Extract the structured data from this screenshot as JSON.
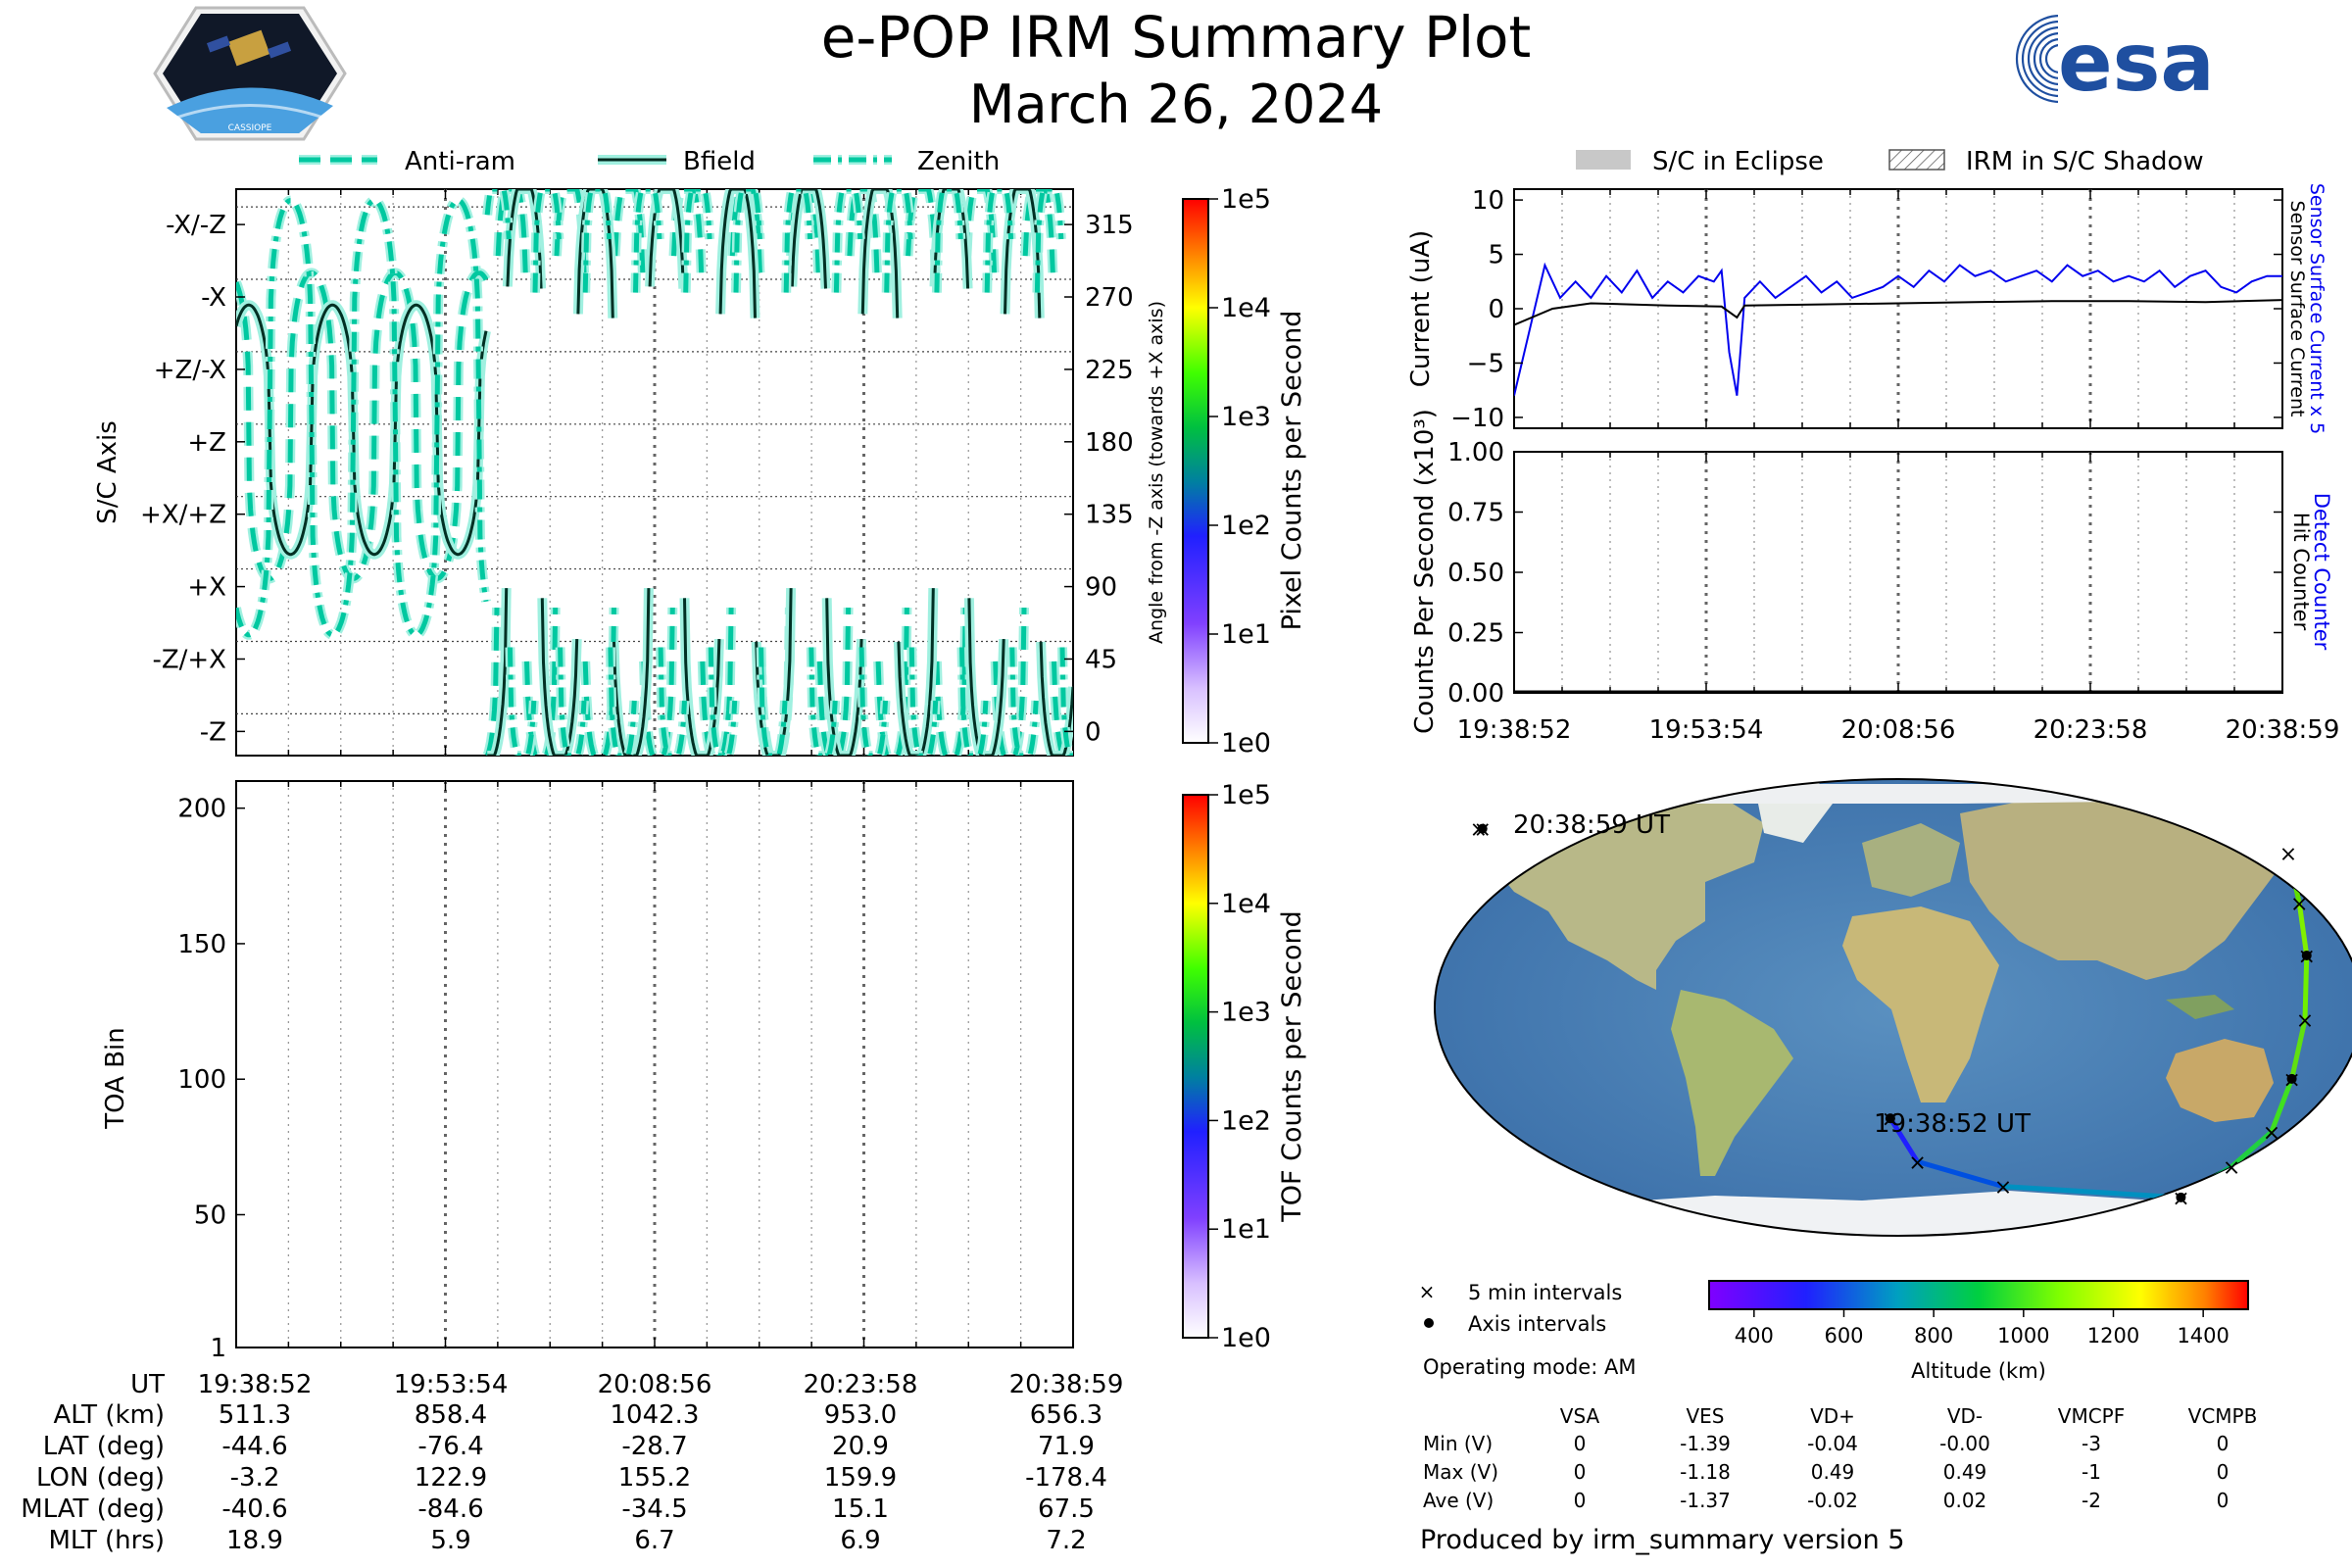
{
  "header": {
    "title": "e-POP IRM Summary Plot",
    "date": "March 26, 2024",
    "left_logo_text": "CASSIOPE",
    "right_logo_text": "esa"
  },
  "colors": {
    "trace": "#00c8a0",
    "trace_glow": "#a0f0e0",
    "sensor_surface": "#0000ee",
    "hit_counter": "#000000",
    "detect_counter": "#0000ee",
    "eclipse": "#c8c8c8"
  },
  "chart_data": [
    {
      "id": "attitude",
      "type": "line",
      "ylabel": "S/C Axis",
      "ylabel_right": "Angle from -Z axis (towards +X axis)",
      "ylim": [
        -15,
        337
      ],
      "y_tick_labels": [
        "-Z",
        "-Z/+X",
        "+X",
        "+X/+Z",
        "+Z",
        "+Z/-X",
        "-X",
        "-X/-Z"
      ],
      "y_tick_values": [
        0,
        45,
        90,
        135,
        180,
        225,
        270,
        315
      ],
      "y_right_ticks": [
        0,
        45,
        90,
        135,
        180,
        225,
        270,
        315
      ],
      "legend": [
        "Anti-ram",
        "Bfield",
        "Zenith"
      ],
      "legend_position": "top",
      "grid": "dashed at major ticks",
      "colorbar": {
        "label": "Pixel Counts per Second",
        "ticks": [
          "1e0",
          "1e1",
          "1e2",
          "1e3",
          "1e4",
          "1e5"
        ]
      }
    },
    {
      "id": "toa",
      "type": "heatmap",
      "ylabel": "TOA Bin",
      "ylim": [
        1,
        210
      ],
      "y_ticks": [
        1,
        50,
        100,
        150,
        200
      ],
      "values": [],
      "colorbar": {
        "label": "TOF Counts per Second",
        "ticks": [
          "1e0",
          "1e1",
          "1e2",
          "1e3",
          "1e4",
          "1e5"
        ]
      }
    },
    {
      "id": "current",
      "type": "line",
      "ylabel": "Current (uA)",
      "ylabel_right": [
        "Sensor Surface Current x 5",
        "Sensor Surface Current"
      ],
      "ylim": [
        -11,
        11
      ],
      "y_ticks": [
        10,
        5,
        0,
        -5,
        -10
      ],
      "legend": [
        "S/C in Eclipse",
        "IRM in S/C Shadow"
      ],
      "legend_position": "top",
      "series": [
        {
          "name": "Sensor Surface Current x 5",
          "x": [
            0,
            0.02,
            0.04,
            0.06,
            0.08,
            0.1,
            0.12,
            0.14,
            0.16,
            0.18,
            0.2,
            0.22,
            0.24,
            0.26,
            0.27,
            0.28,
            0.29,
            0.3,
            0.32,
            0.34,
            0.36,
            0.38,
            0.4,
            0.42,
            0.44,
            0.46,
            0.48,
            0.5,
            0.52,
            0.54,
            0.56,
            0.58,
            0.6,
            0.62,
            0.64,
            0.66,
            0.68,
            0.7,
            0.72,
            0.74,
            0.76,
            0.78,
            0.8,
            0.82,
            0.84,
            0.86,
            0.88,
            0.9,
            0.92,
            0.94,
            0.96,
            0.98,
            1.0
          ],
          "y": [
            -8,
            -2,
            4,
            1,
            2.5,
            1,
            3,
            1.5,
            3.5,
            1,
            2.5,
            1.5,
            3,
            2.5,
            3.5,
            -4,
            -8,
            1,
            2.5,
            1,
            2,
            3,
            1.5,
            2.5,
            1,
            1.5,
            2,
            3,
            2,
            3.5,
            2.5,
            4,
            3,
            3.5,
            2.5,
            3,
            3.5,
            2.5,
            4,
            3,
            3.5,
            2.5,
            3,
            2.5,
            3.5,
            2,
            3,
            3.5,
            2,
            1.5,
            2.5,
            3,
            3
          ]
        },
        {
          "name": "Sensor Surface Current",
          "x": [
            0,
            0.05,
            0.1,
            0.2,
            0.27,
            0.29,
            0.3,
            0.4,
            0.5,
            0.6,
            0.7,
            0.8,
            0.9,
            1.0
          ],
          "y": [
            -1.5,
            0,
            0.5,
            0.3,
            0.2,
            -0.8,
            0.3,
            0.4,
            0.5,
            0.6,
            0.7,
            0.7,
            0.6,
            0.8
          ]
        }
      ]
    },
    {
      "id": "counts",
      "type": "line",
      "ylabel": "Counts Per Second (x10³)",
      "ylabel_right": [
        "Detect Counter",
        "Hit Counter"
      ],
      "ylim": [
        0,
        1
      ],
      "y_ticks": [
        "0.00",
        "0.25",
        "0.50",
        "0.75",
        "1.00"
      ],
      "series": [
        {
          "name": "Detect Counter",
          "x": [
            0,
            1
          ],
          "y": [
            0,
            0
          ]
        },
        {
          "name": "Hit Counter",
          "x": [
            0,
            1
          ],
          "y": [
            0,
            0
          ]
        }
      ]
    },
    {
      "id": "ground_track",
      "type": "scatter",
      "start_label": "19:38:52 UT",
      "end_label": "20:38:59 UT",
      "track": [
        {
          "lon": -3.2,
          "lat": -44.6
        },
        {
          "lon": 8,
          "lat": -62
        },
        {
          "lon": 45,
          "lat": -72
        },
        {
          "lon": 122.9,
          "lat": -76.4
        },
        {
          "lon": 140,
          "lat": -64
        },
        {
          "lon": 152,
          "lat": -50
        },
        {
          "lon": 155.2,
          "lat": -28.7
        },
        {
          "lon": 158,
          "lat": -5
        },
        {
          "lon": 159.9,
          "lat": 20.9
        },
        {
          "lon": 161,
          "lat": 42
        },
        {
          "lon": 163,
          "lat": 62
        },
        {
          "lon": 180,
          "lat": 71.9
        },
        {
          "lon": -178.4,
          "lat": 71.9
        }
      ],
      "legend": [
        "5 min intervals",
        "Axis intervals"
      ],
      "operating_mode": "Operating mode: AM",
      "colorbar": {
        "label": "Altitude (km)",
        "ticks": [
          400,
          600,
          800,
          1000,
          1200,
          1400
        ],
        "range": [
          300,
          1500
        ]
      }
    }
  ],
  "time_axis": {
    "labels": [
      "19:38:52",
      "19:53:54",
      "20:08:56",
      "20:23:58",
      "20:38:59"
    ]
  },
  "ephemeris": {
    "row_labels": [
      "UT",
      "ALT (km)",
      "LAT (deg)",
      "LON (deg)",
      "MLAT (deg)",
      "MLT (hrs)"
    ],
    "columns": [
      [
        "19:38:52",
        "511.3",
        "-44.6",
        "-3.2",
        "-40.6",
        "18.9"
      ],
      [
        "19:53:54",
        "858.4",
        "-76.4",
        "122.9",
        "-84.6",
        "5.9"
      ],
      [
        "20:08:56",
        "1042.3",
        "-28.7",
        "155.2",
        "-34.5",
        "6.7"
      ],
      [
        "20:23:58",
        "953.0",
        "20.9",
        "159.9",
        "15.1",
        "6.9"
      ],
      [
        "20:38:59",
        "656.3",
        "71.9",
        "-178.4",
        "67.5",
        "7.2"
      ]
    ]
  },
  "voltage_table": {
    "headers": [
      "",
      "VSA",
      "VES",
      "VD+",
      "VD-",
      "VMCPF",
      "VCMPB"
    ],
    "rows": [
      [
        "Min (V)",
        "0",
        "-1.39",
        "-0.04",
        "-0.00",
        "-3",
        "0"
      ],
      [
        "Max (V)",
        "0",
        "-1.18",
        "0.49",
        "0.49",
        "-1",
        "0"
      ],
      [
        "Ave (V)",
        "0",
        "-1.37",
        "-0.02",
        "0.02",
        "-2",
        "0"
      ]
    ]
  },
  "footer": "Produced by irm_summary version 5"
}
